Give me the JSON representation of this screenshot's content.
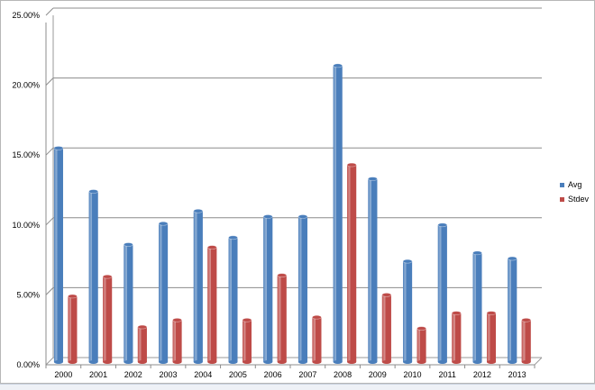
{
  "chart_data": {
    "type": "bar",
    "title": "",
    "xlabel": "",
    "ylabel": "",
    "categories": [
      "2000",
      "2001",
      "2002",
      "2003",
      "2004",
      "2005",
      "2006",
      "2007",
      "2008",
      "2009",
      "2010",
      "2011",
      "2012",
      "2013"
    ],
    "series": [
      {
        "name": "Avg",
        "color": "#4a7ebb",
        "values": [
          15.5,
          12.4,
          8.6,
          10.1,
          11.0,
          9.1,
          10.6,
          10.6,
          21.4,
          13.3,
          7.4,
          10.0,
          8.0,
          7.6
        ]
      },
      {
        "name": "Stdev",
        "color": "#be4b48",
        "values": [
          4.9,
          6.3,
          2.7,
          3.2,
          8.4,
          3.2,
          6.4,
          3.4,
          14.3,
          5.0,
          2.6,
          3.7,
          3.7,
          3.2
        ]
      }
    ],
    "ylim": [
      0,
      25
    ],
    "yticks": [
      "0.00%",
      "5.00%",
      "10.00%",
      "15.00%",
      "20.00%",
      "25.00%"
    ],
    "grid": true,
    "legend_position": "right"
  }
}
